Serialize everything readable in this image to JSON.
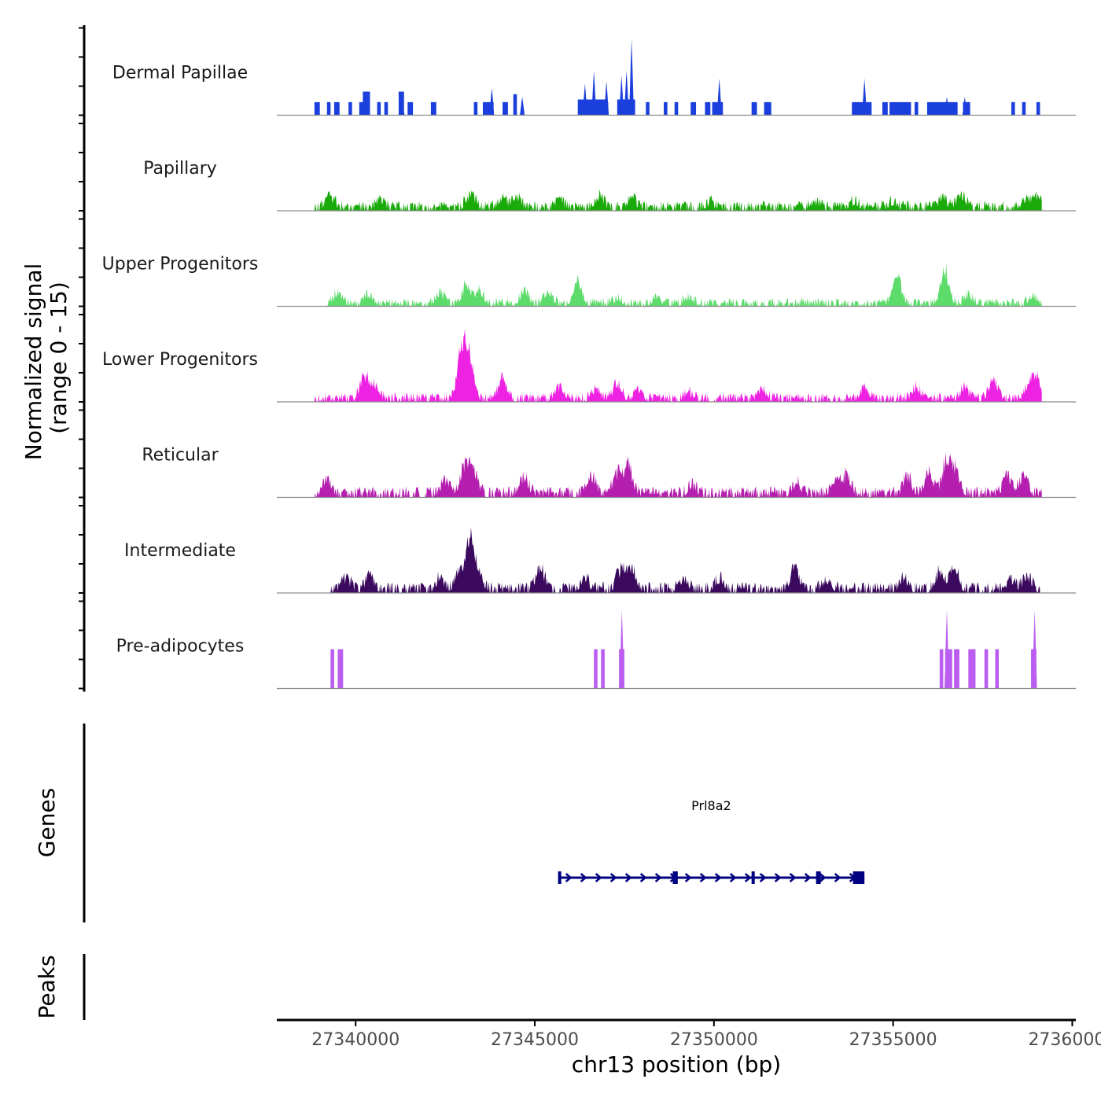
{
  "chart_data": {
    "type": "area",
    "title": "",
    "ylabel_line1": "Normalized signal",
    "ylabel_line2": "(range 0 - 15)",
    "xlabel": "chr13 position (bp)",
    "xlim": [
      27337800,
      27360100
    ],
    "ylim": [
      0,
      15
    ],
    "x_ticks": [
      {
        "value": 27340000,
        "label": "27340000"
      },
      {
        "value": 27345000,
        "label": "27345000"
      },
      {
        "value": 27350000,
        "label": "27350000"
      },
      {
        "value": 27355000,
        "label": "27355000"
      },
      {
        "value": 27360000,
        "label": "27360000"
      }
    ],
    "tracks": [
      {
        "name": "Dermal Papillae",
        "color": "#1a3fdc",
        "style": "bars",
        "start": 27338850,
        "end": 27359150,
        "peaks": [
          [
            27341300,
            2.5
          ],
          [
            27343800,
            5.2
          ],
          [
            27344650,
            3.5
          ],
          [
            27346400,
            6
          ],
          [
            27346650,
            8.5
          ],
          [
            27347000,
            6.5
          ],
          [
            27347420,
            7.5
          ],
          [
            27347560,
            8.5
          ],
          [
            27347700,
            14.5
          ],
          [
            27350150,
            7
          ],
          [
            27354200,
            7
          ],
          [
            27356500,
            3.5
          ],
          [
            27357000,
            3.5
          ]
        ],
        "blocks": [
          [
            27338850,
            27339000,
            2.5
          ],
          [
            27339200,
            27339300,
            2.5
          ],
          [
            27339400,
            27339550,
            2.5
          ],
          [
            27339800,
            27339900,
            2.5
          ],
          [
            27340100,
            27340200,
            2.5
          ],
          [
            27340200,
            27340400,
            4.5
          ],
          [
            27340600,
            27340700,
            2.5
          ],
          [
            27340800,
            27340900,
            2.5
          ],
          [
            27341200,
            27341350,
            4.5
          ],
          [
            27341450,
            27341600,
            2.5
          ],
          [
            27342100,
            27342250,
            2.5
          ],
          [
            27343300,
            27343400,
            2.5
          ],
          [
            27343550,
            27343850,
            2.5
          ],
          [
            27344100,
            27344250,
            2.5
          ],
          [
            27344400,
            27344500,
            4
          ],
          [
            27346200,
            27347000,
            3
          ],
          [
            27347000,
            27347050,
            2.5
          ],
          [
            27347300,
            27347800,
            3
          ],
          [
            27348100,
            27348200,
            2.5
          ],
          [
            27348600,
            27348700,
            2.5
          ],
          [
            27348900,
            27349000,
            2.5
          ],
          [
            27349350,
            27349500,
            2.5
          ],
          [
            27349750,
            27349900,
            2.5
          ],
          [
            27349950,
            27350250,
            2.5
          ],
          [
            27351050,
            27351200,
            2.5
          ],
          [
            27351400,
            27351600,
            2.5
          ],
          [
            27353850,
            27354400,
            2.5
          ],
          [
            27354700,
            27354850,
            2.5
          ],
          [
            27354900,
            27355500,
            2.5
          ],
          [
            27355600,
            27355700,
            2.5
          ],
          [
            27355950,
            27356800,
            2.5
          ],
          [
            27356950,
            27357150,
            2.5
          ],
          [
            27358300,
            27358400,
            2.5
          ],
          [
            27358600,
            27358700,
            2.5
          ],
          [
            27359000,
            27359100,
            2.5
          ]
        ]
      },
      {
        "name": "Papillary",
        "color": "#1aaa0a",
        "style": "area",
        "start": 27338850,
        "end": 27359150,
        "base": 0.6,
        "noise": 1.3,
        "gaps": 0.3,
        "seed": 11,
        "peaks": [
          [
            27339300,
            2.5
          ],
          [
            27340700,
            1.5
          ],
          [
            27343200,
            3
          ],
          [
            27344100,
            2
          ],
          [
            27344500,
            2.4
          ],
          [
            27345700,
            1.6
          ],
          [
            27346800,
            2.6
          ],
          [
            27347700,
            2.2
          ],
          [
            27349900,
            1.3
          ],
          [
            27352800,
            1.5
          ],
          [
            27353900,
            1.5
          ],
          [
            27355000,
            1.4
          ],
          [
            27356400,
            1.8
          ],
          [
            27356900,
            3
          ],
          [
            27358700,
            1.6
          ],
          [
            27359000,
            2
          ]
        ]
      },
      {
        "name": "Upper Progenitors",
        "color": "#5ddb6b",
        "style": "area",
        "start": 27339200,
        "end": 27359150,
        "base": 0.4,
        "noise": 1.2,
        "gaps": 0.4,
        "seed": 23,
        "peaks": [
          [
            27339500,
            2.3
          ],
          [
            27340350,
            2
          ],
          [
            27342350,
            2.5
          ],
          [
            27343100,
            4
          ],
          [
            27343450,
            2.8
          ],
          [
            27344700,
            3
          ],
          [
            27345400,
            2.5
          ],
          [
            27346200,
            5
          ],
          [
            27347300,
            1.2
          ],
          [
            27348400,
            1.4
          ],
          [
            27349300,
            1.5
          ],
          [
            27355100,
            6.5
          ],
          [
            27356450,
            7
          ],
          [
            27357100,
            2
          ],
          [
            27358900,
            1.8
          ]
        ]
      },
      {
        "name": "Lower Progenitors",
        "color": "#ee22e3",
        "style": "area",
        "start": 27338850,
        "end": 27359150,
        "base": 0.4,
        "noise": 1.3,
        "gaps": 0.35,
        "seed": 37,
        "peaks": [
          [
            27340250,
            5.5
          ],
          [
            27340550,
            3
          ],
          [
            27342950,
            9
          ],
          [
            27343150,
            10.5
          ],
          [
            27344100,
            5
          ],
          [
            27345700,
            3
          ],
          [
            27346700,
            2
          ],
          [
            27347300,
            4
          ],
          [
            27347900,
            2
          ],
          [
            27349300,
            1.5
          ],
          [
            27351350,
            2.2
          ],
          [
            27354200,
            2.5
          ],
          [
            27355650,
            2.8
          ],
          [
            27357000,
            2.5
          ],
          [
            27357800,
            4.5
          ],
          [
            27358800,
            3
          ],
          [
            27359000,
            5
          ]
        ]
      },
      {
        "name": "Reticular",
        "color": "#b51faf",
        "style": "area",
        "start": 27338850,
        "end": 27359150,
        "base": 0.6,
        "noise": 1.5,
        "gaps": 0.35,
        "seed": 53,
        "peaks": [
          [
            27339200,
            3
          ],
          [
            27342500,
            3
          ],
          [
            27343050,
            7
          ],
          [
            27343300,
            5
          ],
          [
            27344700,
            4
          ],
          [
            27346600,
            4
          ],
          [
            27347300,
            4.5
          ],
          [
            27347600,
            6
          ],
          [
            27349400,
            2
          ],
          [
            27352300,
            2.5
          ],
          [
            27353400,
            3.5
          ],
          [
            27353700,
            4
          ],
          [
            27355400,
            4
          ],
          [
            27356000,
            4.5
          ],
          [
            27356500,
            7.5
          ],
          [
            27356750,
            5
          ],
          [
            27358200,
            4
          ],
          [
            27358650,
            4.5
          ]
        ]
      },
      {
        "name": "Intermediate",
        "color": "#3b0a5e",
        "style": "area",
        "start": 27339300,
        "end": 27359100,
        "base": 0.6,
        "noise": 1.5,
        "gaps": 0.35,
        "seed": 71,
        "peaks": [
          [
            27339750,
            2.5
          ],
          [
            27340400,
            3
          ],
          [
            27342350,
            2.5
          ],
          [
            27342900,
            4
          ],
          [
            27343200,
            11
          ],
          [
            27343450,
            3
          ],
          [
            27345150,
            4.5
          ],
          [
            27346400,
            2.5
          ],
          [
            27347400,
            4.5
          ],
          [
            27347700,
            5
          ],
          [
            27349150,
            2.5
          ],
          [
            27350150,
            2.5
          ],
          [
            27352250,
            4.5
          ],
          [
            27353150,
            2.5
          ],
          [
            27355300,
            2.5
          ],
          [
            27356300,
            4
          ],
          [
            27356700,
            5
          ],
          [
            27358300,
            2
          ],
          [
            27358750,
            3
          ]
        ]
      },
      {
        "name": "Pre-adipocytes",
        "color": "#bb5df0",
        "style": "bars",
        "start": 27339200,
        "end": 27359200,
        "peaks": [
          [
            27347430,
            15
          ],
          [
            27356500,
            15
          ],
          [
            27358950,
            15
          ]
        ],
        "blocks": [
          [
            27339300,
            27339400,
            7.5
          ],
          [
            27339500,
            27339650,
            7.5
          ],
          [
            27346650,
            27346750,
            7.5
          ],
          [
            27346850,
            27346950,
            7.5
          ],
          [
            27347350,
            27347500,
            7.5
          ],
          [
            27356300,
            27356400,
            7.5
          ],
          [
            27356450,
            27356650,
            7.5
          ],
          [
            27356700,
            27356850,
            7.5
          ],
          [
            27357100,
            27357300,
            7.5
          ],
          [
            27357550,
            27357650,
            7.5
          ],
          [
            27357850,
            27357950,
            7.5
          ],
          [
            27358850,
            27359000,
            7.5
          ]
        ]
      }
    ],
    "genes_panel_label": "Genes",
    "genes": [
      {
        "name": "Prl8a2",
        "strand": "+",
        "start": 27345650,
        "end": 27354200,
        "exons": [
          [
            27345650,
            27345720
          ],
          [
            27348850,
            27348990
          ],
          [
            27351050,
            27351130
          ],
          [
            27352850,
            27352980
          ],
          [
            27353880,
            27354200
          ]
        ]
      }
    ],
    "peaks_panel_label": "Peaks",
    "peaks": []
  }
}
